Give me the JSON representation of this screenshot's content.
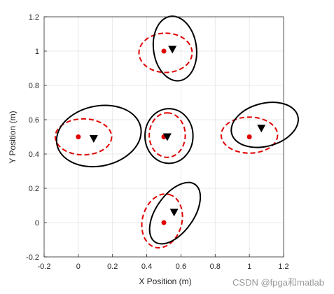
{
  "chart_data": {
    "type": "scatter",
    "title": "",
    "xlabel": "X Position (m)",
    "ylabel": "Y Position (m)",
    "xlim": [
      -0.2,
      1.2
    ],
    "ylim": [
      -0.2,
      1.2
    ],
    "xticks": [
      "-0.2",
      "0",
      "0.2",
      "0.4",
      "0.6",
      "0.8",
      "1",
      "1.2"
    ],
    "yticks": [
      "-0.2",
      "0",
      "0.2",
      "0.4",
      "0.6",
      "0.8",
      "1",
      "1.2"
    ],
    "grid": true,
    "legend": "none",
    "colors": {
      "true": "#e00000",
      "estimate": "#000000",
      "grid": "#e3e3e3",
      "axis": "#262626"
    },
    "true_positions": [
      {
        "x": 0.5,
        "y": 1.0
      },
      {
        "x": 0.0,
        "y": 0.5
      },
      {
        "x": 0.5,
        "y": 0.5
      },
      {
        "x": 1.0,
        "y": 0.5
      },
      {
        "x": 0.5,
        "y": 0.0
      }
    ],
    "estimated_positions": [
      {
        "x": 0.55,
        "y": 1.01
      },
      {
        "x": 0.09,
        "y": 0.49
      },
      {
        "x": 0.52,
        "y": 0.5
      },
      {
        "x": 1.07,
        "y": 0.55
      },
      {
        "x": 0.56,
        "y": 0.06
      }
    ],
    "dashed_ellipses": [
      {
        "cx": 0.51,
        "cy": 0.99,
        "rx": 0.115,
        "ry": 0.155,
        "rot": 90
      },
      {
        "cx": 0.03,
        "cy": 0.5,
        "rx": 0.165,
        "ry": 0.105,
        "rot": 0
      },
      {
        "cx": 0.52,
        "cy": 0.51,
        "rx": 0.13,
        "ry": 0.105,
        "rot": 90
      },
      {
        "cx": 1.0,
        "cy": 0.51,
        "rx": 0.165,
        "ry": 0.105,
        "rot": 0
      },
      {
        "cx": 0.49,
        "cy": 0.01,
        "rx": 0.16,
        "ry": 0.115,
        "rot": 75
      }
    ],
    "solid_ellipses": [
      {
        "cx": 0.565,
        "cy": 1.015,
        "rx": 0.19,
        "ry": 0.125,
        "rot": 98
      },
      {
        "cx": 0.12,
        "cy": 0.505,
        "rx": 0.25,
        "ry": 0.175,
        "rot": 12
      },
      {
        "cx": 0.53,
        "cy": 0.505,
        "rx": 0.16,
        "ry": 0.14,
        "rot": 90
      },
      {
        "cx": 1.09,
        "cy": 0.57,
        "rx": 0.2,
        "ry": 0.125,
        "rot": 15
      },
      {
        "cx": 0.565,
        "cy": 0.055,
        "rx": 0.205,
        "ry": 0.11,
        "rot": 55
      }
    ]
  },
  "watermark": "CSDN @fpga和matlab"
}
